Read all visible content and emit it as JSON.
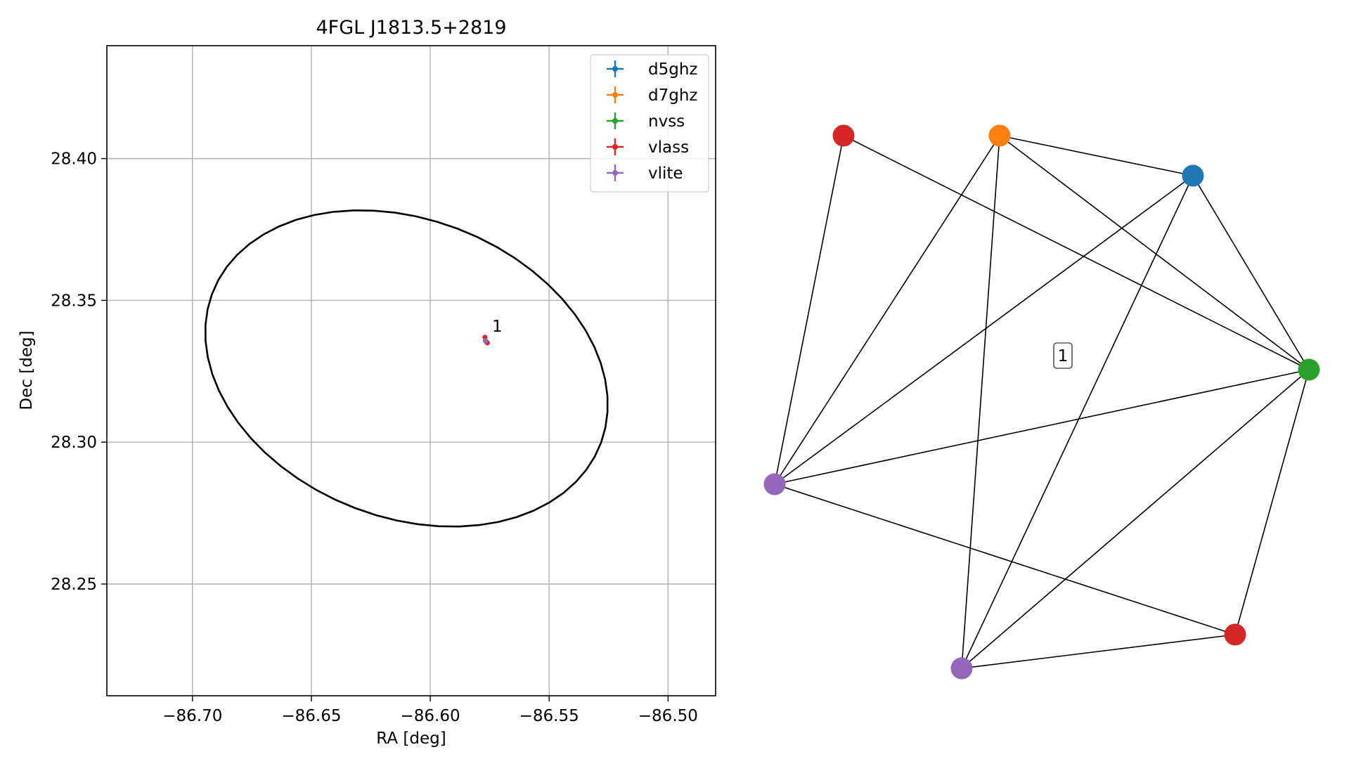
{
  "chart_data": [
    {
      "type": "scatter",
      "title": "4FGL J1813.5+2819",
      "xlabel": "RA [deg]",
      "ylabel": "Dec [deg]",
      "xlim": [
        -86.736,
        -86.48
      ],
      "ylim": [
        28.2106,
        28.4398
      ],
      "xticks": [
        -86.7,
        -86.65,
        -86.6,
        -86.55,
        -86.5
      ],
      "xtick_labels": [
        "−86.70",
        "−86.65",
        "−86.60",
        "−86.55",
        "−86.50"
      ],
      "yticks": [
        28.25,
        28.3,
        28.35,
        28.4
      ],
      "ytick_labels": [
        "28.25",
        "28.30",
        "28.35",
        "28.40"
      ],
      "grid": true,
      "legend_position": "top-right",
      "ellipse": {
        "center_ra": -86.61,
        "center_dec": 28.326,
        "semi_major_deg": 0.0862,
        "semi_minor_deg": 0.0533,
        "angle_deg": -14,
        "color": "#000000"
      },
      "series": [
        {
          "name": "d5ghz",
          "color": "#1f77b4",
          "x": [
            -86.5765
          ],
          "y": [
            28.3355
          ]
        },
        {
          "name": "d7ghz",
          "color": "#ff7f0e",
          "x": [
            -86.5765
          ],
          "y": [
            28.3355
          ]
        },
        {
          "name": "nvss",
          "color": "#2ca02c",
          "x": [
            -86.5765
          ],
          "y": [
            28.3355
          ]
        },
        {
          "name": "vlass",
          "color": "#d62728",
          "x": [
            -86.577,
            -86.576
          ],
          "y": [
            28.337,
            28.335
          ]
        },
        {
          "name": "vlite",
          "color": "#9467bd",
          "x": [
            -86.5768
          ],
          "y": [
            28.3357
          ]
        }
      ],
      "annotations": [
        {
          "text": "1",
          "x": -86.574,
          "y": 28.339
        }
      ]
    },
    {
      "type": "network",
      "nodes": [
        {
          "id": 0,
          "color": "#d62728"
        },
        {
          "id": 1,
          "color": "#ff7f0e"
        },
        {
          "id": 2,
          "color": "#1f77b4"
        },
        {
          "id": 3,
          "color": "#2ca02c"
        },
        {
          "id": 4,
          "color": "#9467bd"
        },
        {
          "id": 5,
          "color": "#d62728"
        },
        {
          "id": 6,
          "color": "#9467bd"
        }
      ],
      "edges": [
        [
          0,
          4
        ],
        [
          0,
          3
        ],
        [
          1,
          2
        ],
        [
          1,
          3
        ],
        [
          1,
          4
        ],
        [
          1,
          6
        ],
        [
          2,
          3
        ],
        [
          2,
          4
        ],
        [
          2,
          6
        ],
        [
          3,
          4
        ],
        [
          3,
          5
        ],
        [
          3,
          6
        ],
        [
          4,
          5
        ],
        [
          5,
          6
        ]
      ],
      "group_label": "1"
    }
  ]
}
